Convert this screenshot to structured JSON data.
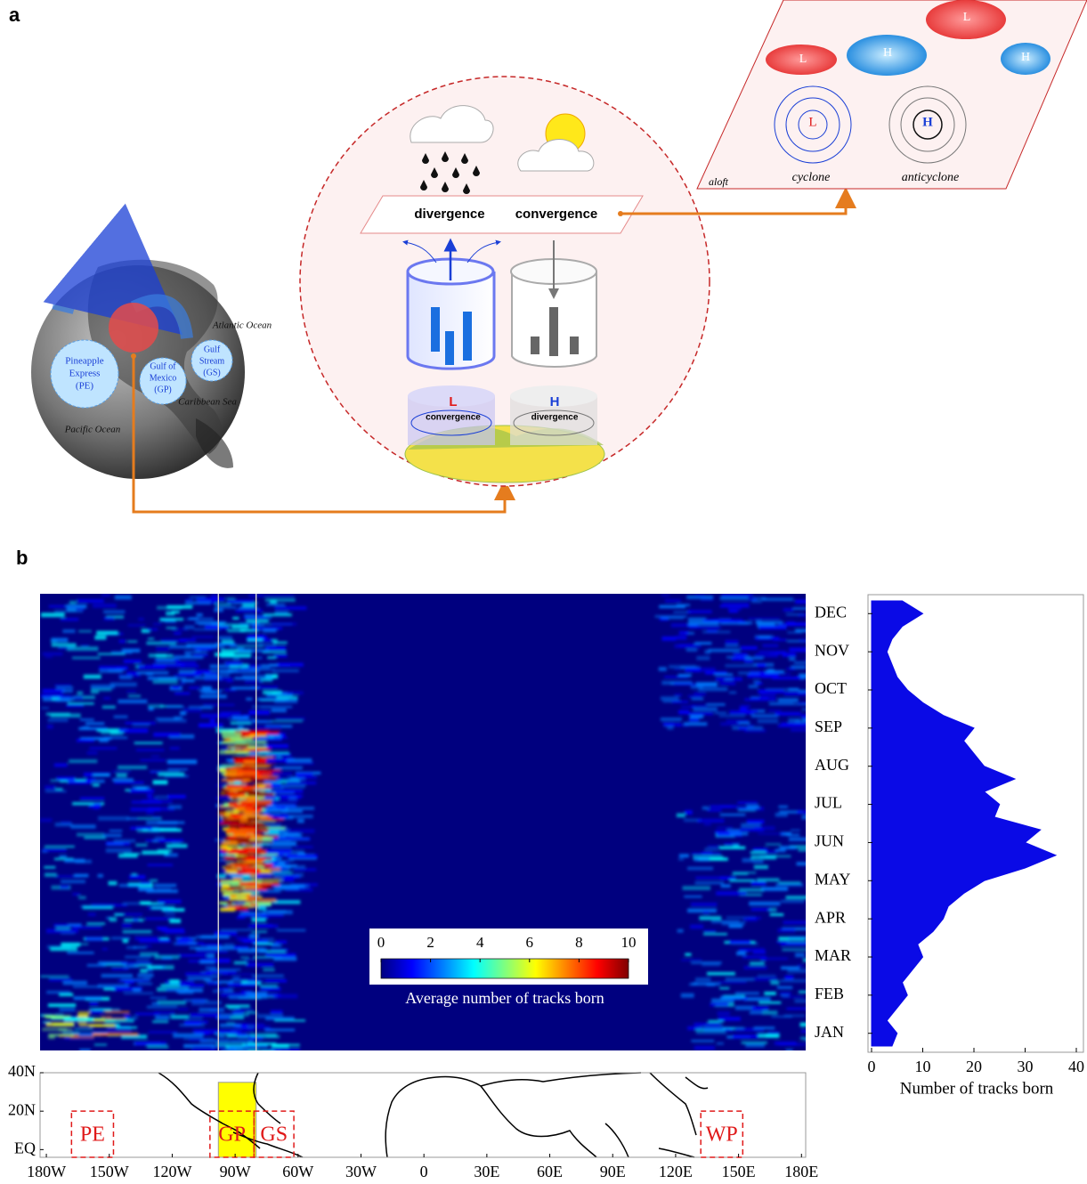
{
  "panel_a": {
    "label": "a",
    "globe": {
      "oceans": [
        "Atlantic Ocean",
        "Caribbean Sea",
        "Pacific Ocean"
      ],
      "sources": [
        [
          "Pineapple",
          "Express",
          "(PE)"
        ],
        [
          "Gulf of",
          "Mexico",
          "(GP)"
        ],
        [
          "Gulf",
          "Stream",
          "(GS)"
        ]
      ]
    },
    "surface": {
      "upper": [
        "divergence",
        "convergence"
      ],
      "low": {
        "symbol": "L",
        "text": "convergence"
      },
      "high": {
        "symbol": "H",
        "text": "divergence"
      }
    },
    "aloft": {
      "label": "aloft",
      "systems": [
        "L",
        "H",
        "L",
        "H"
      ],
      "cyclone": {
        "symbol": "L",
        "text": "cyclone"
      },
      "anticyclone": {
        "symbol": "H",
        "text": "anticyclone"
      }
    }
  },
  "panel_b": {
    "label": "b",
    "heatmap": {
      "colormap": [
        "#00007f",
        "#0000ff",
        "#007fff",
        "#00ffff",
        "#7fff7f",
        "#ffff00",
        "#ff7f00",
        "#ff0000",
        "#7f0000"
      ],
      "colorbar": {
        "lim": [
          0,
          10
        ],
        "ticks": [
          0,
          2,
          4,
          6,
          8,
          10
        ],
        "label": "Average number of tracks born"
      }
    },
    "side_chart": {
      "type": "area",
      "color": "#0a0ae6",
      "categories": [
        null,
        "JAN",
        null,
        null,
        "FEB",
        null,
        null,
        "MAR",
        null,
        null,
        "APR",
        null,
        null,
        "MAY",
        null,
        null,
        "JUN",
        null,
        null,
        "JUL",
        null,
        null,
        "AUG",
        null,
        null,
        "SEP",
        null,
        null,
        "OCT",
        null,
        null,
        "NOV",
        null,
        null,
        "DEC",
        null
      ],
      "values": [
        4,
        5,
        3,
        5,
        7,
        6,
        8,
        10,
        9,
        12,
        14,
        15,
        18,
        22,
        30,
        36,
        30,
        33,
        24,
        25,
        22,
        28,
        22,
        20,
        18,
        20,
        14,
        10,
        7,
        5,
        4,
        3,
        4,
        6,
        10,
        6
      ],
      "xlim": [
        0,
        40
      ],
      "xticks": [
        0,
        10,
        20,
        30,
        40
      ],
      "x_label": "Number of tracks born"
    },
    "map": {
      "xlim": [
        -183,
        182
      ],
      "ylim": [
        -4,
        40
      ],
      "xticks": [
        {
          "value": -180,
          "label": "180W"
        },
        {
          "value": -150,
          "label": "150W"
        },
        {
          "value": -120,
          "label": "120W"
        },
        {
          "value": -90,
          "label": "90W"
        },
        {
          "value": -60,
          "label": "60W"
        },
        {
          "value": -30,
          "label": "30W"
        },
        0,
        {
          "value": 30,
          "label": "30E"
        },
        {
          "value": 60,
          "label": "60E"
        },
        {
          "value": 90,
          "label": "90E"
        },
        {
          "value": 120,
          "label": "120E"
        },
        {
          "value": 150,
          "label": "150E"
        },
        {
          "value": 180,
          "label": "180E"
        }
      ],
      "yticks": [
        {
          "value": 40,
          "label": "40N"
        },
        {
          "value": 20,
          "label": "20N"
        },
        {
          "value": 0,
          "label": "EQ"
        }
      ],
      "highlight": {
        "lon": [
          -98,
          -80
        ],
        "lat": [
          -4,
          35
        ]
      },
      "regions": [
        {
          "label": "PE",
          "lon": [
            -168,
            -148
          ],
          "lat": [
            -4,
            20
          ]
        },
        {
          "label": "GP",
          "lon": [
            -102,
            -81
          ],
          "lat": [
            -4,
            20
          ]
        },
        {
          "label": "GS",
          "lon": [
            -81,
            -62
          ],
          "lat": [
            -4,
            20
          ]
        },
        {
          "label": "WP",
          "lon": [
            132,
            152
          ],
          "lat": [
            -4,
            20
          ]
        }
      ]
    }
  }
}
